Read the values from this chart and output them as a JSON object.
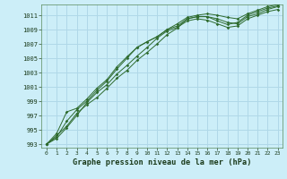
{
  "xlabel": "Graphe pression niveau de la mer (hPa)",
  "bg_color": "#cceef8",
  "grid_color": "#b0d8e8",
  "line_color": "#2d6a2d",
  "marker_color": "#2d6a2d",
  "ylim": [
    992.5,
    1012.5
  ],
  "xlim": [
    -0.5,
    23.5
  ],
  "yticks": [
    993,
    995,
    997,
    999,
    1001,
    1003,
    1005,
    1007,
    1009,
    1011
  ],
  "xticks": [
    0,
    1,
    2,
    3,
    4,
    5,
    6,
    7,
    8,
    9,
    10,
    11,
    12,
    13,
    14,
    15,
    16,
    17,
    18,
    19,
    20,
    21,
    22,
    23
  ],
  "series": [
    [
      993.0,
      994.2,
      995.5,
      997.3,
      998.5,
      999.5,
      1000.8,
      1002.2,
      1003.3,
      1004.7,
      1005.8,
      1007.0,
      1008.3,
      1009.2,
      1010.5,
      1010.8,
      1010.8,
      1010.2,
      1009.7,
      1010.0,
      1011.0,
      1011.5,
      1012.0,
      1012.3
    ],
    [
      993.0,
      993.8,
      995.3,
      997.0,
      998.8,
      1000.2,
      1001.3,
      1002.8,
      1004.0,
      1005.3,
      1006.5,
      1007.8,
      1008.8,
      1009.3,
      1010.2,
      1010.5,
      1010.3,
      1009.8,
      1009.3,
      1009.5,
      1010.5,
      1011.0,
      1011.5,
      1011.8
    ],
    [
      993.0,
      994.0,
      996.2,
      997.8,
      999.0,
      1000.5,
      1001.8,
      1003.5,
      1005.0,
      1006.5,
      1007.3,
      1008.0,
      1009.0,
      1009.5,
      1010.5,
      1010.8,
      1010.8,
      1010.5,
      1010.0,
      1009.8,
      1010.8,
      1011.2,
      1011.8,
      1012.2
    ],
    [
      993.0,
      994.5,
      997.5,
      998.0,
      999.3,
      1000.8,
      1002.0,
      1003.8,
      1005.2,
      1006.5,
      1007.3,
      1008.0,
      1009.0,
      1009.8,
      1010.7,
      1011.0,
      1011.2,
      1011.0,
      1010.7,
      1010.5,
      1011.2,
      1011.7,
      1012.2,
      1012.5
    ]
  ]
}
